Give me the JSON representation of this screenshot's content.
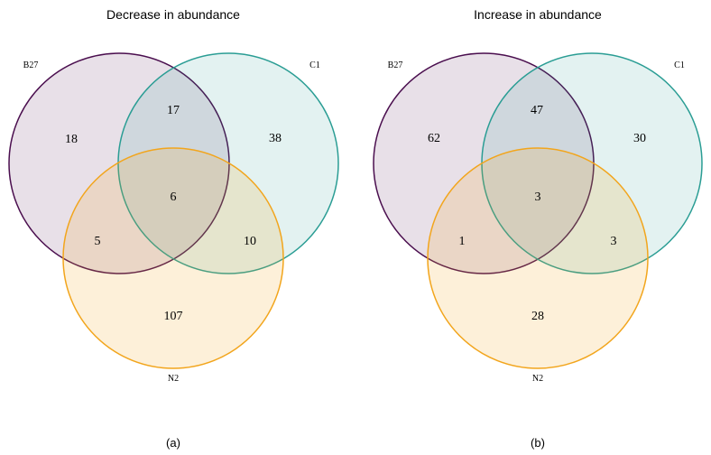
{
  "colors": {
    "B27": "#4a0e4e",
    "C1": "#2a9d94",
    "N2": "#f2a51c",
    "B27_fill": "#e6dcea",
    "C1_fill": "#dcefee",
    "N2_fill": "#fde8cf"
  },
  "panels": [
    {
      "title": "Decrease in abundance",
      "caption": "(a)",
      "sets": {
        "B27": "B27",
        "C1": "C1",
        "N2": "N2"
      },
      "regions": {
        "B27_only": "18",
        "C1_only": "38",
        "N2_only": "107",
        "B27_C1": "17",
        "B27_N2": "5",
        "C1_N2": "10",
        "B27_C1_N2": "6"
      }
    },
    {
      "title": "Increase in abundance",
      "caption": "(b)",
      "sets": {
        "B27": "B27",
        "C1": "C1",
        "N2": "N2"
      },
      "regions": {
        "B27_only": "62",
        "C1_only": "30",
        "N2_only": "28",
        "B27_C1": "47",
        "B27_N2": "1",
        "C1_N2": "3",
        "B27_C1_N2": "3"
      }
    }
  ]
}
